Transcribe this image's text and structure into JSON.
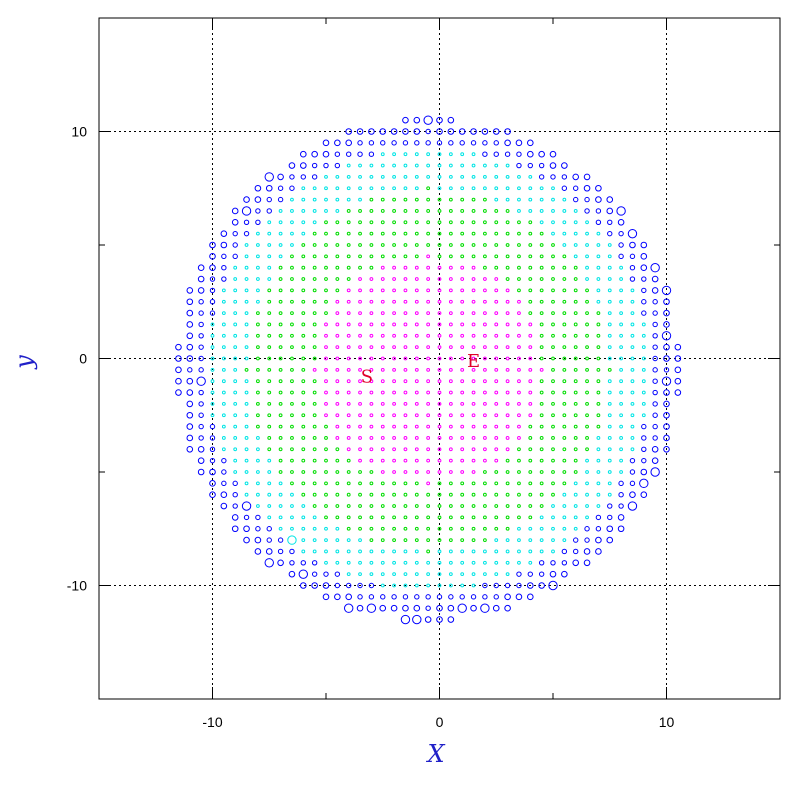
{
  "chart_data": {
    "type": "scatter",
    "title": "",
    "xlabel": "X",
    "ylabel": "y",
    "xlim": [
      -15,
      15
    ],
    "ylim": [
      -15,
      15
    ],
    "xticks": [
      -10,
      0,
      10
    ],
    "yticks": [
      -10,
      0,
      10
    ],
    "xtick_labels": [
      "-10",
      "0",
      "10"
    ],
    "ytick_labels": [
      "-10",
      "0",
      "10"
    ],
    "grid": "dotted at -10, 0, 10",
    "grid_spacing": 0.5,
    "disk": {
      "center": [
        -0.5,
        -0.5
      ],
      "radius": 11.1
    },
    "zones": [
      {
        "color": "#ff00ff",
        "r_max": 5.0
      },
      {
        "color": "#00dd00",
        "r_max": 8.0
      },
      {
        "color": "#00e5e5",
        "r_max": 9.8
      },
      {
        "color": "#0000ff",
        "r_max": 11.1
      }
    ],
    "large_markers": [
      [
        1.0,
        10.5
      ],
      [
        -0.5,
        10.5
      ],
      [
        -3.0,
        10.5
      ],
      [
        -7.5,
        8.0
      ],
      [
        -8.5,
        6.5
      ],
      [
        -10.0,
        5.5
      ],
      [
        7.5,
        8.0
      ],
      [
        8.0,
        6.5
      ],
      [
        8.5,
        5.5
      ],
      [
        9.5,
        4.0
      ],
      [
        10.0,
        3.0
      ],
      [
        10.5,
        2.0
      ],
      [
        10.0,
        1.0
      ],
      [
        10.0,
        -1.0
      ],
      [
        10.5,
        -2.5
      ],
      [
        -11.5,
        1.0
      ],
      [
        -11.5,
        -2.0
      ],
      [
        -10.5,
        -1.0
      ],
      [
        9.5,
        -5.0
      ],
      [
        9.0,
        -5.5
      ],
      [
        8.5,
        -6.5
      ],
      [
        -8.5,
        -6.5
      ],
      [
        -6.5,
        -8.0
      ],
      [
        -7.5,
        -9.0
      ],
      [
        -6.0,
        -9.5
      ],
      [
        -4.0,
        -11.0
      ],
      [
        -3.0,
        -11.0
      ],
      [
        -1.5,
        -11.5
      ],
      [
        -1.0,
        -11.5
      ],
      [
        6.0,
        -9.5
      ],
      [
        5.0,
        -10.0
      ],
      [
        2.0,
        -11.0
      ],
      [
        1.0,
        -11.0
      ]
    ],
    "annotations": [
      {
        "text": "S",
        "x": -3.2,
        "y": -0.8
      },
      {
        "text": "E",
        "x": 1.5,
        "y": -0.1
      }
    ],
    "colors": {
      "axis_title": "#2020c8",
      "annotation": "#e0002a"
    }
  }
}
